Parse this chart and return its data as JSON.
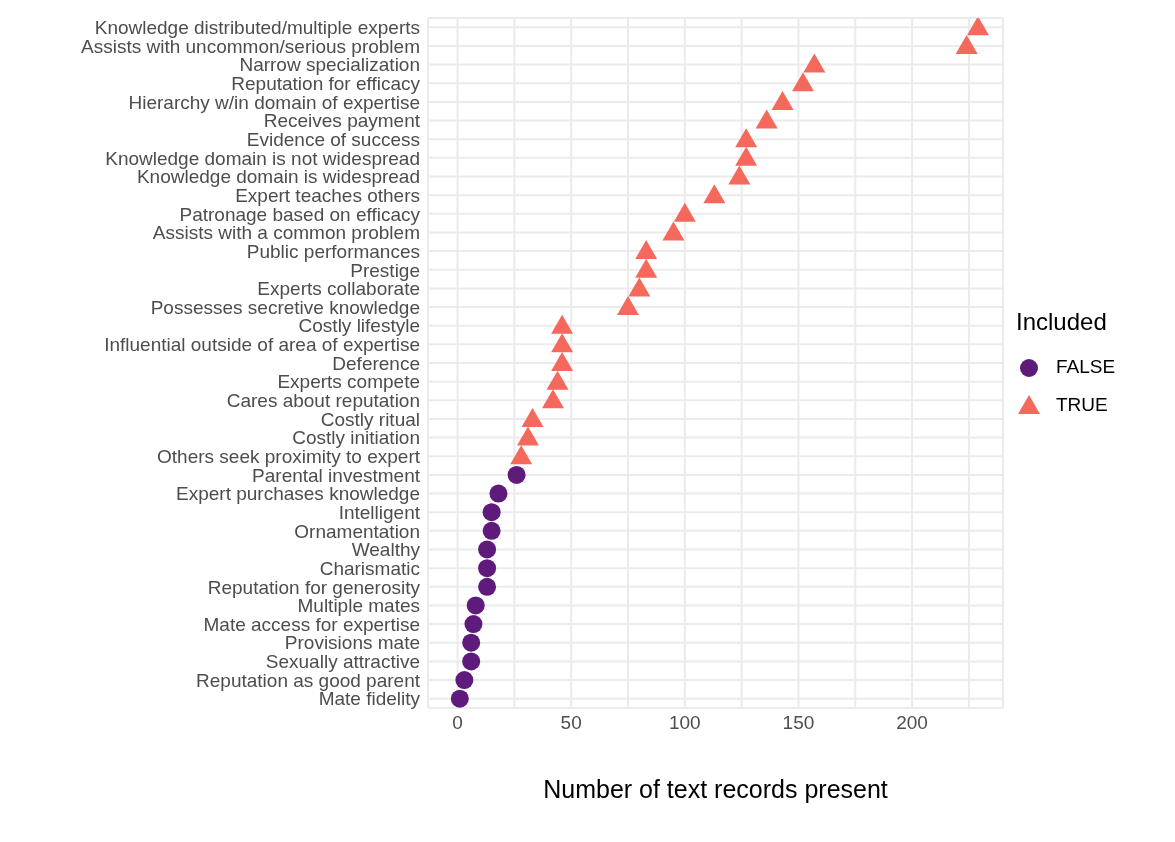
{
  "chart_data": {
    "type": "scatter",
    "orientation": "horizontal",
    "xlabel": "Number of text records present",
    "legend_title": "Included",
    "legend": "right",
    "grid": true,
    "categories": [
      "Knowledge distributed/multiple experts",
      "Assists with uncommon/serious problem",
      "Narrow specialization",
      "Reputation for efficacy",
      "Hierarchy w/in domain of expertise",
      "Receives payment",
      "Evidence of success",
      "Knowledge domain is not widespread",
      "Knowledge domain is widespread",
      "Expert teaches others",
      "Patronage based on efficacy",
      "Assists with a common problem",
      "Public performances",
      "Prestige",
      "Experts collaborate",
      "Possesses secretive knowledge",
      "Costly lifestyle",
      "Influential outside of area of expertise",
      "Deference",
      "Experts compete",
      "Cares about reputation",
      "Costly ritual",
      "Costly initiation",
      "Others seek proximity to expert",
      "Parental investment",
      "Expert purchases knowledge",
      "Intelligent",
      "Ornamentation",
      "Wealthy",
      "Charismatic",
      "Reputation for generosity",
      "Multiple mates",
      "Mate access for expertise",
      "Provisions mate",
      "Sexually attractive",
      "Reputation as good parent",
      "Mate fidelity"
    ],
    "xlim": [
      -13,
      240
    ],
    "xticks": [
      0,
      {
        "value": 25,
        "label": null
      },
      50,
      {
        "value": 75,
        "label": null
      },
      100,
      {
        "value": 125,
        "label": null
      },
      150,
      {
        "value": 175,
        "label": null
      },
      200,
      {
        "value": 225,
        "label": null
      }
    ],
    "series": [
      {
        "name": "FALSE",
        "color": "#5f1b7b",
        "marker": "circle",
        "values": [
          null,
          null,
          null,
          null,
          null,
          null,
          null,
          null,
          null,
          null,
          null,
          null,
          null,
          null,
          null,
          null,
          null,
          null,
          null,
          null,
          null,
          null,
          null,
          null,
          26,
          18,
          15,
          15,
          13,
          13,
          13,
          8,
          7,
          6,
          6,
          3,
          1
        ]
      },
      {
        "name": "TRUE",
        "color": "#f4695c",
        "marker": "triangle",
        "values": [
          229,
          224,
          157,
          152,
          143,
          136,
          127,
          127,
          124,
          113,
          100,
          95,
          83,
          83,
          80,
          75,
          46,
          46,
          46,
          44,
          42,
          33,
          31,
          28,
          null,
          null,
          null,
          null,
          null,
          null,
          null,
          null,
          null,
          null,
          null,
          null,
          null
        ]
      }
    ]
  }
}
